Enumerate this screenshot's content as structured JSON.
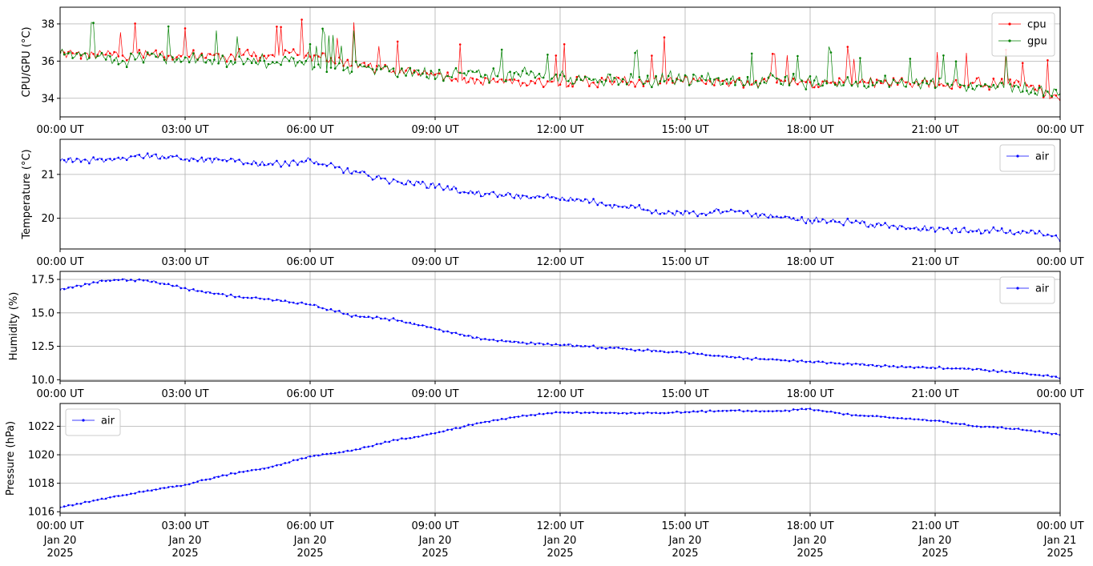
{
  "figure": {
    "background": "#ffffff",
    "x_ticks": [
      "00:00 UT",
      "03:00 UT",
      "06:00 UT",
      "09:00 UT",
      "12:00 UT",
      "15:00 UT",
      "18:00 UT",
      "21:00 UT",
      "00:00 UT"
    ],
    "x_date_lines": [
      [
        "Jan 20",
        "2025"
      ],
      [
        "Jan 20",
        "2025"
      ],
      [
        "Jan 20",
        "2025"
      ],
      [
        "Jan 20",
        "2025"
      ],
      [
        "Jan 20",
        "2025"
      ],
      [
        "Jan 20",
        "2025"
      ],
      [
        "Jan 20",
        "2025"
      ],
      [
        "Jan 20",
        "2025"
      ],
      [
        "Jan 21",
        "2025"
      ]
    ]
  },
  "chart_data": [
    {
      "type": "line",
      "ylabel": "CPU/GPU (°C)",
      "xlim": [
        "2025-01-20T00:00Z",
        "2025-01-21T00:00Z"
      ],
      "ylim": [
        33.0,
        38.9
      ],
      "yticks": [
        34,
        36,
        38
      ],
      "grid": true,
      "legend": "top-right",
      "series": [
        {
          "name": "cpu",
          "color": "#ff0000",
          "x_hours": [
            0,
            1,
            2,
            3,
            4,
            5,
            6,
            7,
            8,
            9,
            10,
            11,
            12,
            13,
            14,
            15,
            16,
            17,
            18,
            19,
            20,
            21,
            22,
            23,
            24
          ],
          "values": [
            36.4,
            36.3,
            36.4,
            36.3,
            36.3,
            36.3,
            36.3,
            35.9,
            35.4,
            35.4,
            34.9,
            34.9,
            34.9,
            34.9,
            34.9,
            34.9,
            34.9,
            34.9,
            34.9,
            34.9,
            34.9,
            34.8,
            34.8,
            34.8,
            34.0
          ],
          "noise": 0.35,
          "spike_rate": 0.05,
          "spike_height": 1.8,
          "markers": true
        },
        {
          "name": "gpu",
          "color": "#008000",
          "x_hours": [
            0,
            1,
            2,
            3,
            4,
            5,
            6,
            7,
            8,
            9,
            10,
            11,
            12,
            13,
            14,
            15,
            16,
            17,
            18,
            19,
            20,
            21,
            22,
            23,
            24
          ],
          "values": [
            36.4,
            36.2,
            36.2,
            36.1,
            36.1,
            36.0,
            36.0,
            35.6,
            35.5,
            35.4,
            35.3,
            35.2,
            35.2,
            35.0,
            35.0,
            35.0,
            35.0,
            34.9,
            34.9,
            34.8,
            34.8,
            34.8,
            34.7,
            34.7,
            34.2
          ],
          "noise": 0.45,
          "spike_rate": 0.06,
          "spike_height": 1.6,
          "markers": true
        }
      ]
    },
    {
      "type": "line",
      "ylabel": "Temperature (°C)",
      "xlim": [
        "2025-01-20T00:00Z",
        "2025-01-21T00:00Z"
      ],
      "ylim": [
        19.3,
        21.8
      ],
      "yticks": [
        20,
        21
      ],
      "grid": true,
      "legend": "top-right",
      "series": [
        {
          "name": "air",
          "color": "#0000ff",
          "x_hours": [
            0,
            1,
            2,
            3,
            4,
            5,
            6,
            7,
            8,
            9,
            10,
            11,
            12,
            13,
            14,
            15,
            16,
            17,
            18,
            19,
            20,
            21,
            22,
            23,
            24
          ],
          "values": [
            21.3,
            21.35,
            21.45,
            21.35,
            21.3,
            21.25,
            21.3,
            21.05,
            20.85,
            20.75,
            20.55,
            20.5,
            20.45,
            20.35,
            20.2,
            20.1,
            20.15,
            20.05,
            19.95,
            19.9,
            19.8,
            19.75,
            19.7,
            19.68,
            19.55
          ],
          "noise": 0.09,
          "spike_rate": 0.0,
          "spike_height": 0,
          "markers": true
        }
      ]
    },
    {
      "type": "line",
      "ylabel": "Humidity (%)",
      "xlim": [
        "2025-01-20T00:00Z",
        "2025-01-21T00:00Z"
      ],
      "ylim": [
        9.9,
        18.1
      ],
      "yticks": [
        10.0,
        12.5,
        15.0,
        17.5
      ],
      "grid": true,
      "legend": "top-right",
      "series": [
        {
          "name": "air",
          "color": "#0000ff",
          "x_hours": [
            0,
            1,
            2,
            3,
            4,
            5,
            6,
            7,
            8,
            9,
            10,
            11,
            12,
            13,
            14,
            15,
            16,
            17,
            18,
            19,
            20,
            21,
            22,
            23,
            24
          ],
          "values": [
            16.7,
            17.4,
            17.5,
            16.8,
            16.3,
            16.0,
            15.6,
            14.8,
            14.5,
            13.8,
            13.1,
            12.8,
            12.6,
            12.4,
            12.2,
            12.0,
            11.7,
            11.5,
            11.35,
            11.2,
            11.0,
            10.9,
            10.75,
            10.5,
            10.2
          ],
          "noise": 0.1,
          "spike_rate": 0.0,
          "spike_height": 0,
          "markers": true
        }
      ]
    },
    {
      "type": "line",
      "ylabel": "Pressure (hPa)",
      "xlim": [
        "2025-01-20T00:00Z",
        "2025-01-21T00:00Z"
      ],
      "ylim": [
        1015.9,
        1023.6
      ],
      "yticks": [
        1016,
        1018,
        1020,
        1022
      ],
      "grid": true,
      "legend": "top-left",
      "series": [
        {
          "name": "air",
          "color": "#0000ff",
          "x_hours": [
            0,
            1,
            2,
            3,
            4,
            5,
            6,
            7,
            8,
            9,
            10,
            11,
            12,
            13,
            14,
            15,
            16,
            17,
            18,
            19,
            20,
            21,
            22,
            23,
            24
          ],
          "values": [
            1016.3,
            1016.9,
            1017.4,
            1017.9,
            1018.6,
            1019.1,
            1019.9,
            1020.3,
            1021.0,
            1021.5,
            1022.2,
            1022.7,
            1023.0,
            1022.95,
            1022.9,
            1023.0,
            1023.1,
            1023.05,
            1023.2,
            1022.8,
            1022.6,
            1022.4,
            1022.0,
            1021.8,
            1021.4
          ],
          "noise": 0.06,
          "spike_rate": 0.0,
          "spike_height": 0,
          "markers": true
        }
      ]
    }
  ]
}
